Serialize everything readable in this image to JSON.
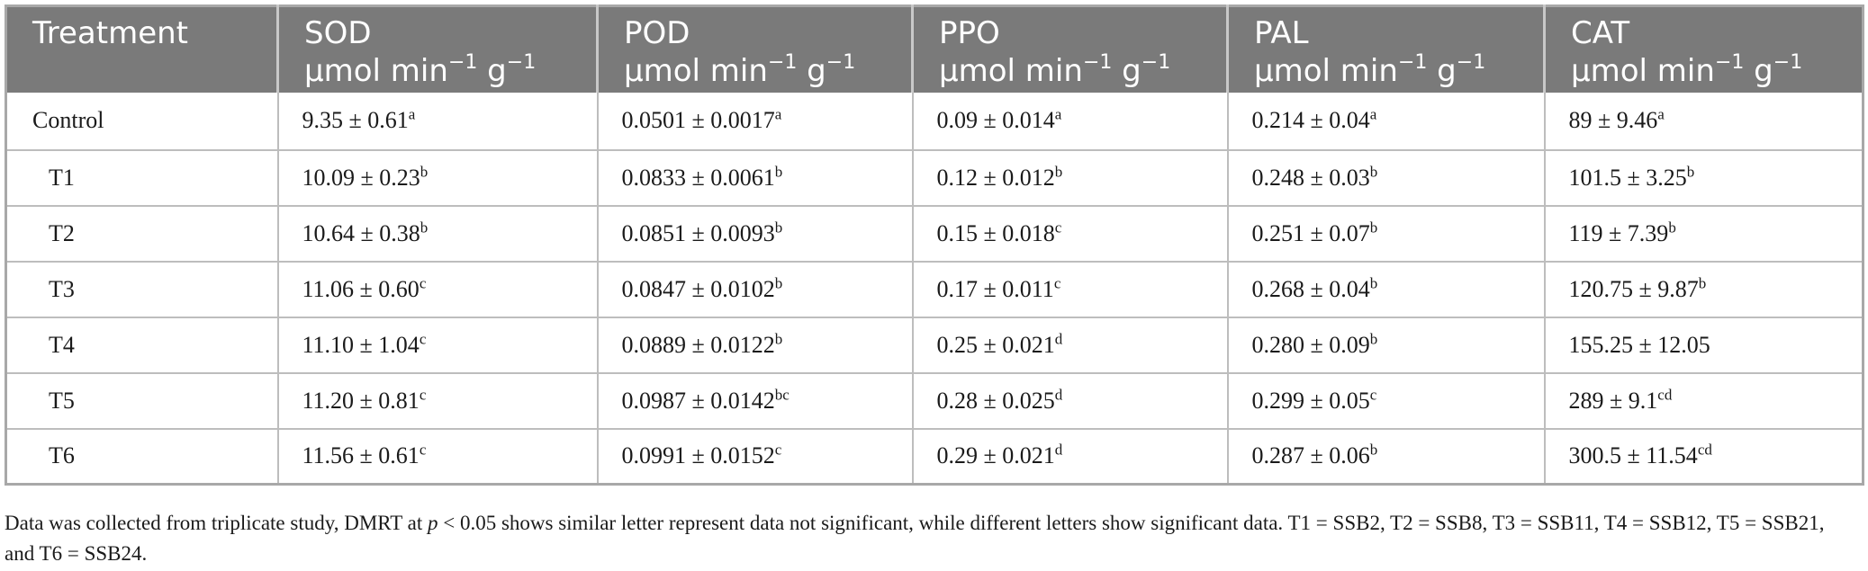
{
  "table": {
    "headers": [
      {
        "name": "Treatment",
        "unit": ""
      },
      {
        "name": "SOD",
        "unit": "μmol min",
        "exp": "−1",
        "unit2": " g",
        "exp2": "−1"
      },
      {
        "name": "POD",
        "unit": "μmol min",
        "exp": "−1",
        "unit2": " g",
        "exp2": "−1"
      },
      {
        "name": "PPO",
        "unit": "μmol min",
        "exp": "−1",
        "unit2": " g",
        "exp2": "−1"
      },
      {
        "name": "PAL",
        "unit": "μmol min",
        "exp": "−1",
        "unit2": " g",
        "exp2": "−1"
      },
      {
        "name": "CAT",
        "unit": "μmol min",
        "exp": "−1",
        "unit2": " g",
        "exp2": "−1"
      }
    ],
    "rows": [
      {
        "treatment": "Control",
        "cells": [
          {
            "v": "9.35 ± 0.61",
            "s": "a"
          },
          {
            "v": "0.0501 ± 0.0017",
            "s": "a"
          },
          {
            "v": "0.09 ± 0.014",
            "s": "a"
          },
          {
            "v": "0.214 ± 0.04",
            "s": "a"
          },
          {
            "v": "89 ± 9.46",
            "s": "a"
          }
        ]
      },
      {
        "treatment": "T1",
        "cells": [
          {
            "v": "10.09 ± 0.23",
            "s": "b"
          },
          {
            "v": "0.0833 ± 0.0061",
            "s": "b"
          },
          {
            "v": "0.12 ± 0.012",
            "s": "b"
          },
          {
            "v": "0.248 ± 0.03",
            "s": "b"
          },
          {
            "v": "101.5 ± 3.25",
            "s": "b"
          }
        ]
      },
      {
        "treatment": "T2",
        "cells": [
          {
            "v": "10.64 ± 0.38",
            "s": "b"
          },
          {
            "v": "0.0851 ± 0.0093",
            "s": "b"
          },
          {
            "v": "0.15 ± 0.018",
            "s": "c"
          },
          {
            "v": "0.251 ± 0.07",
            "s": "b"
          },
          {
            "v": "119 ± 7.39",
            "s": "b"
          }
        ]
      },
      {
        "treatment": "T3",
        "cells": [
          {
            "v": "11.06 ± 0.60",
            "s": "c"
          },
          {
            "v": "0.0847 ± 0.0102",
            "s": "b"
          },
          {
            "v": "0.17 ± 0.011",
            "s": "c"
          },
          {
            "v": "0.268 ± 0.04",
            "s": "b"
          },
          {
            "v": "120.75 ± 9.87",
            "s": "b"
          }
        ]
      },
      {
        "treatment": "T4",
        "cells": [
          {
            "v": "11.10 ± 1.04",
            "s": "c"
          },
          {
            "v": "0.0889 ± 0.0122",
            "s": "b"
          },
          {
            "v": "0.25 ± 0.021",
            "s": "d"
          },
          {
            "v": "0.280 ± 0.09",
            "s": "b"
          },
          {
            "v": "155.25 ± 12.05",
            "s": ""
          }
        ]
      },
      {
        "treatment": "T5",
        "cells": [
          {
            "v": "11.20 ± 0.81",
            "s": "c"
          },
          {
            "v": "0.0987 ± 0.0142",
            "s": "bc"
          },
          {
            "v": "0.28 ± 0.025",
            "s": "d"
          },
          {
            "v": "0.299 ± 0.05",
            "s": "c"
          },
          {
            "v": "289 ± 9.1",
            "s": "cd"
          }
        ]
      },
      {
        "treatment": "T6",
        "cells": [
          {
            "v": "11.56 ± 0.61",
            "s": "c"
          },
          {
            "v": "0.0991 ± 0.0152",
            "s": "c"
          },
          {
            "v": "0.29 ± 0.021",
            "s": "d"
          },
          {
            "v": "0.287 ± 0.06",
            "s": "b"
          },
          {
            "v": "300.5 ± 11.54",
            "s": "cd"
          }
        ]
      }
    ]
  },
  "footnote": {
    "part1": "Data was collected from triplicate study, DMRT at ",
    "p": "p",
    "part2": " < 0.05 shows similar letter represent data not significant, while different letters show significant data. T1 = SSB2, T2 = SSB8, T3 = SSB11, T4 = SSB12, T5 = SSB21, and T6 = SSB24."
  },
  "colors": {
    "header_bg": "#7a7a7a",
    "header_text": "#ffffff",
    "grid": "#bdbdbd"
  }
}
